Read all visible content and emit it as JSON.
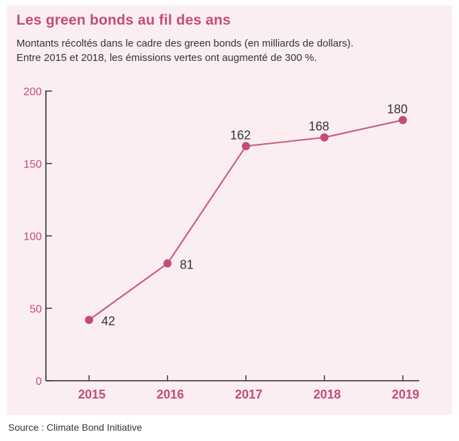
{
  "title": "Les green bonds au fil des ans",
  "subtitle_lines": [
    "Montants récoltés dans le cadre des green bonds (en milliards de dollars).",
    "Entre 2015 et 2018, les émissions vertes ont augmenté de 300 %."
  ],
  "source": "Source : Climate Bond Initiative",
  "colors": {
    "accent": "#c24d74",
    "line": "#c95d7e",
    "point": "#c24d74",
    "background": "#fbeef1",
    "text": "#333333"
  },
  "chart_data": {
    "type": "line",
    "title": "Les green bonds au fil des ans",
    "xlabel": "",
    "ylabel": "",
    "categories": [
      "2015",
      "2016",
      "2017",
      "2018",
      "2019"
    ],
    "series": [
      {
        "values": [
          42,
          81,
          162,
          168,
          180
        ]
      }
    ],
    "data_labels": [
      "42",
      "81",
      "162",
      "168",
      "180"
    ],
    "yticks": [
      0,
      50,
      100,
      150,
      200
    ],
    "ylim": [
      0,
      200
    ],
    "grid": false,
    "legend": "none"
  }
}
